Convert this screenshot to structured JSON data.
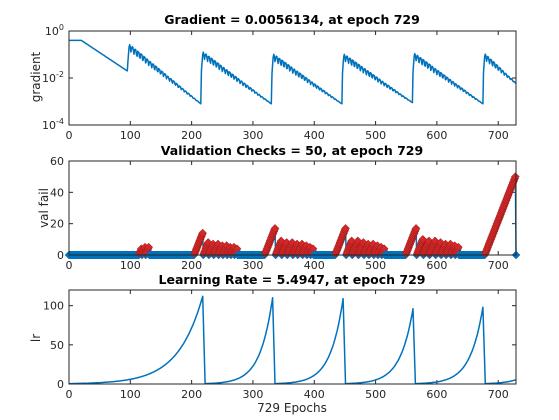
{
  "chart_data": [
    {
      "type": "line",
      "title": "Gradient = 0.0056134, at epoch 729",
      "ylabel": "gradient",
      "xlim": [
        0,
        729
      ],
      "ylim": [
        0.0001,
        1
      ],
      "yscale": "log",
      "xticks": [
        0,
        100,
        200,
        300,
        400,
        500,
        600,
        700
      ],
      "yticks": [
        {
          "base": "10",
          "exp": "-4",
          "value": 0.0001
        },
        {
          "base": "10",
          "exp": "-2",
          "value": 0.01
        },
        {
          "base": "10",
          "exp": "0",
          "value": 1
        }
      ],
      "xlabel": "",
      "series_color": "#0072bd",
      "cycles": [
        {
          "start": 0,
          "peak": 0.4,
          "end": 0.02
        },
        {
          "start": 95,
          "peak": 0.32,
          "end": 0.0008
        },
        {
          "start": 215,
          "peak": 0.15,
          "end": 0.0008
        },
        {
          "start": 330,
          "peak": 0.12,
          "end": 0.0008
        },
        {
          "start": 445,
          "peak": 0.12,
          "end": 0.0009
        },
        {
          "start": 560,
          "peak": 0.13,
          "end": 0.0008
        },
        {
          "start": 675,
          "peak": 0.13,
          "end": 0.0056
        }
      ]
    },
    {
      "type": "scatter",
      "title": "Validation Checks = 50, at epoch 729",
      "ylabel": "val fail",
      "xlim": [
        0,
        729
      ],
      "ylim": [
        0,
        60
      ],
      "xticks": [
        0,
        100,
        200,
        300,
        400,
        500,
        600,
        700
      ],
      "yticks": [
        0,
        20,
        40,
        60
      ],
      "xlabel": "",
      "series_color": "#0072bd",
      "marker_color": "#d62728",
      "bursts": [
        {
          "start": 115,
          "peaks": [
            4,
            5,
            5
          ]
        },
        {
          "start": 205,
          "peaks": [
            14,
            8,
            7,
            7,
            6,
            6,
            5,
            5,
            4
          ]
        },
        {
          "start": 320,
          "peaks": [
            17,
            9,
            8,
            8,
            7,
            7,
            6,
            5,
            4
          ]
        },
        {
          "start": 435,
          "peaks": [
            17,
            9,
            9,
            8,
            7,
            7,
            6,
            5,
            4
          ]
        },
        {
          "start": 550,
          "peaks": [
            17,
            10,
            9,
            9,
            8,
            7,
            7,
            6,
            5
          ]
        },
        {
          "start": 679,
          "peaks": [
            50
          ]
        }
      ]
    },
    {
      "type": "line",
      "title": "Learning Rate = 5.4947, at epoch 729",
      "ylabel": "lr",
      "xlim": [
        0,
        729
      ],
      "ylim": [
        0,
        120
      ],
      "xticks": [
        0,
        100,
        200,
        300,
        400,
        500,
        600,
        700
      ],
      "yticks": [
        0,
        50,
        100
      ],
      "xlabel": "729 Epochs",
      "series_color": "#0072bd",
      "cycles": [
        {
          "start": 0,
          "peak_epoch": 218,
          "peak": 112,
          "base": 0.5
        },
        {
          "start": 222,
          "peak_epoch": 332,
          "peak": 110,
          "base": 0.5
        },
        {
          "start": 336,
          "peak_epoch": 447,
          "peak": 109,
          "base": 0.5
        },
        {
          "start": 451,
          "peak_epoch": 561,
          "peak": 96,
          "base": 0.5
        },
        {
          "start": 565,
          "peak_epoch": 675,
          "peak": 98,
          "base": 0.5
        },
        {
          "start": 679,
          "peak_epoch": 729,
          "peak": 5.4947,
          "base": 0.5
        }
      ]
    }
  ]
}
